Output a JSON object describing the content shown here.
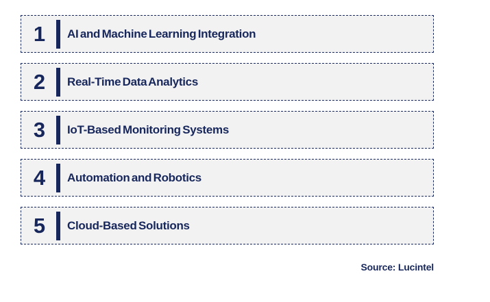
{
  "items": [
    {
      "number": "1",
      "label": "AI and Machine Learning Integration"
    },
    {
      "number": "2",
      "label": "Real-Time Data Analytics"
    },
    {
      "number": "3",
      "label": "IoT-Based Monitoring Systems"
    },
    {
      "number": "4",
      "label": "Automation and Robotics"
    },
    {
      "number": "5",
      "label": "Cloud-Based Solutions"
    }
  ],
  "source": {
    "label": "Source: Lucintel"
  },
  "colors": {
    "accent_navy": "#17275c",
    "box_background": "#f2f2f2",
    "page_background": "#ffffff"
  }
}
